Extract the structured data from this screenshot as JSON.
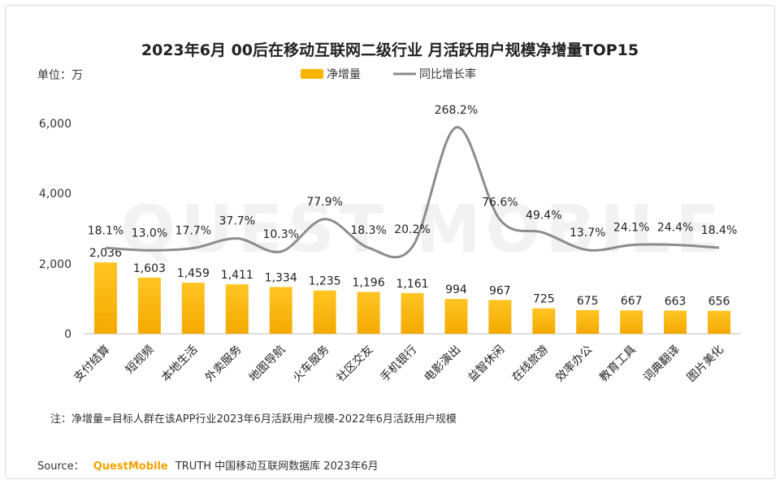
{
  "chart_data": {
    "type": "bar",
    "title": "2023年6月 00后在移动互联网二级行业 月活跃用户规模净增量TOP15",
    "unit_label": "单位：万",
    "categories": [
      "支付结算",
      "短视频",
      "本地生活",
      "外卖服务",
      "地图导航",
      "火车服务",
      "社区交友",
      "手机银行",
      "电影演出",
      "益智休闲",
      "在线旅游",
      "效率办公",
      "教育工具",
      "词典翻译",
      "图片美化"
    ],
    "series": [
      {
        "name": "净增量",
        "type": "bar",
        "color": "#f7b500",
        "values": [
          2036,
          1603,
          1459,
          1411,
          1334,
          1235,
          1196,
          1161,
          994,
          967,
          725,
          675,
          667,
          663,
          656
        ],
        "labels": [
          "2,036",
          "1,603",
          "1,459",
          "1,411",
          "1,334",
          "1,235",
          "1,196",
          "1,161",
          "994",
          "967",
          "725",
          "675",
          "667",
          "663",
          "656"
        ]
      },
      {
        "name": "同比增长率",
        "type": "line",
        "color": "#8c8c8c",
        "values": [
          18.1,
          13.0,
          17.7,
          37.7,
          10.3,
          77.9,
          18.3,
          20.2,
          268.2,
          76.6,
          49.4,
          13.7,
          24.1,
          24.4,
          18.4
        ],
        "labels": [
          "18.1%",
          "13.0%",
          "17.7%",
          "37.7%",
          "10.3%",
          "77.9%",
          "18.3%",
          "20.2%",
          "268.2%",
          "76.6%",
          "49.4%",
          "13.7%",
          "24.1%",
          "24.4%",
          "18.4%"
        ]
      }
    ],
    "y_ticks": [
      "6,000",
      "4,000",
      "2,000",
      "0"
    ],
    "ylim": [
      0,
      6000
    ],
    "legend_position": "top-center",
    "grid": false
  },
  "note": "注：净增量=目标人群在该APP行业2023年6月活跃用户规模-2022年6月活跃用户规模",
  "source": {
    "prefix": "Source：",
    "brand": "QuestMobile",
    "suffix": "TRUTH 中国移动互联网数据库 2023年6月"
  },
  "watermark": "QUEST MOBILE",
  "colors": {
    "bar": "#f7b500",
    "line": "#8c8c8c",
    "brand": "#f5a200"
  }
}
